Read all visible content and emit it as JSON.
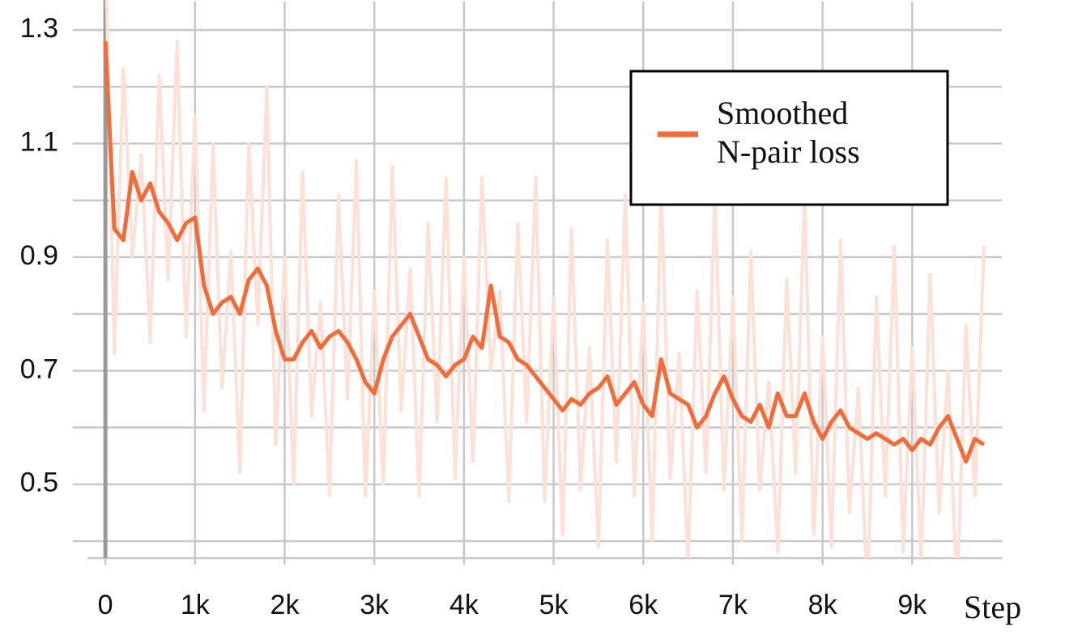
{
  "chart_data": {
    "type": "line",
    "x_label": "Step",
    "x": [
      0,
      100,
      200,
      300,
      400,
      500,
      600,
      700,
      800,
      900,
      1000,
      1100,
      1200,
      1300,
      1400,
      1500,
      1600,
      1700,
      1800,
      1900,
      2000,
      2100,
      2200,
      2300,
      2400,
      2500,
      2600,
      2700,
      2800,
      2900,
      3000,
      3100,
      3200,
      3300,
      3400,
      3500,
      3600,
      3700,
      3800,
      3900,
      4000,
      4100,
      4200,
      4300,
      4400,
      4500,
      4600,
      4700,
      4800,
      4900,
      5000,
      5100,
      5200,
      5300,
      5400,
      5500,
      5600,
      5700,
      5800,
      5900,
      6000,
      6100,
      6200,
      6300,
      6400,
      6500,
      6600,
      6700,
      6800,
      6900,
      7000,
      7100,
      7200,
      7300,
      7400,
      7500,
      7600,
      7700,
      7800,
      7900,
      8000,
      8100,
      8200,
      8300,
      8400,
      8500,
      8600,
      8700,
      8800,
      8900,
      9000,
      9100,
      9200,
      9300,
      9400,
      9500,
      9600,
      9700,
      9800
    ],
    "series": [
      {
        "color": "#fde0d6",
        "values": [
          1.46,
          0.73,
          1.23,
          0.9,
          1.08,
          0.75,
          1.22,
          0.86,
          1.28,
          0.76,
          1.15,
          0.63,
          1.1,
          0.67,
          0.91,
          0.52,
          1.1,
          0.78,
          1.2,
          0.57,
          0.9,
          0.5,
          1.05,
          0.62,
          0.82,
          0.48,
          1.01,
          0.65,
          1.07,
          0.48,
          0.84,
          0.5,
          1.06,
          0.63,
          0.88,
          0.48,
          0.96,
          0.61,
          1.04,
          0.51,
          0.9,
          0.54,
          1.04,
          0.7,
          0.84,
          0.47,
          0.96,
          0.61,
          1.04,
          0.47,
          0.83,
          0.41,
          0.95,
          0.49,
          0.74,
          0.39,
          0.93,
          0.54,
          1.01,
          0.48,
          0.82,
          0.4,
          1.02,
          0.51,
          0.73,
          0.36,
          0.84,
          0.52,
          1.01,
          0.49,
          0.83,
          0.4,
          0.91,
          0.49,
          0.68,
          0.38,
          0.86,
          0.52,
          1.01,
          0.41,
          0.76,
          0.39,
          0.93,
          0.45,
          0.67,
          0.3,
          0.83,
          0.48,
          0.92,
          0.38,
          0.74,
          0.36,
          0.87,
          0.45,
          0.7,
          0.3,
          0.78,
          0.48,
          0.92
        ]
      },
      {
        "name": "Smoothed\nN-pair loss",
        "color": "#f26b3a",
        "values": [
          1.28,
          0.95,
          0.93,
          1.05,
          1.0,
          1.03,
          0.98,
          0.96,
          0.93,
          0.96,
          0.97,
          0.85,
          0.8,
          0.82,
          0.83,
          0.8,
          0.86,
          0.88,
          0.85,
          0.77,
          0.72,
          0.72,
          0.75,
          0.77,
          0.74,
          0.76,
          0.77,
          0.75,
          0.72,
          0.68,
          0.66,
          0.72,
          0.76,
          0.78,
          0.8,
          0.76,
          0.72,
          0.71,
          0.69,
          0.71,
          0.72,
          0.76,
          0.74,
          0.85,
          0.76,
          0.75,
          0.72,
          0.71,
          0.69,
          0.67,
          0.65,
          0.63,
          0.65,
          0.64,
          0.66,
          0.67,
          0.69,
          0.64,
          0.66,
          0.68,
          0.64,
          0.62,
          0.72,
          0.66,
          0.65,
          0.64,
          0.6,
          0.62,
          0.66,
          0.69,
          0.65,
          0.62,
          0.61,
          0.64,
          0.6,
          0.66,
          0.62,
          0.62,
          0.66,
          0.61,
          0.58,
          0.61,
          0.63,
          0.6,
          0.59,
          0.58,
          0.59,
          0.58,
          0.57,
          0.58,
          0.56,
          0.58,
          0.57,
          0.6,
          0.62,
          0.58,
          0.54,
          0.58,
          0.57
        ]
      }
    ],
    "xlim": [
      -200,
      10000
    ],
    "ylim": [
      0.37,
      1.35
    ],
    "xticks": [
      0,
      {
        "value": 1000,
        "label": "1k"
      },
      {
        "value": 2000,
        "label": "2k"
      },
      {
        "value": 3000,
        "label": "3k"
      },
      {
        "value": 4000,
        "label": "4k"
      },
      {
        "value": 5000,
        "label": "5k"
      },
      {
        "value": 6000,
        "label": "6k"
      },
      {
        "value": 7000,
        "label": "7k"
      },
      {
        "value": 8000,
        "label": "8k"
      },
      {
        "value": 9000,
        "label": "9k"
      }
    ],
    "yticks": [
      0.5,
      0.7,
      0.9,
      1.1,
      1.3
    ],
    "yminor": [
      0.4,
      0.6,
      0.8,
      1.0,
      1.2
    ],
    "grid": true,
    "legend": "upper right"
  }
}
